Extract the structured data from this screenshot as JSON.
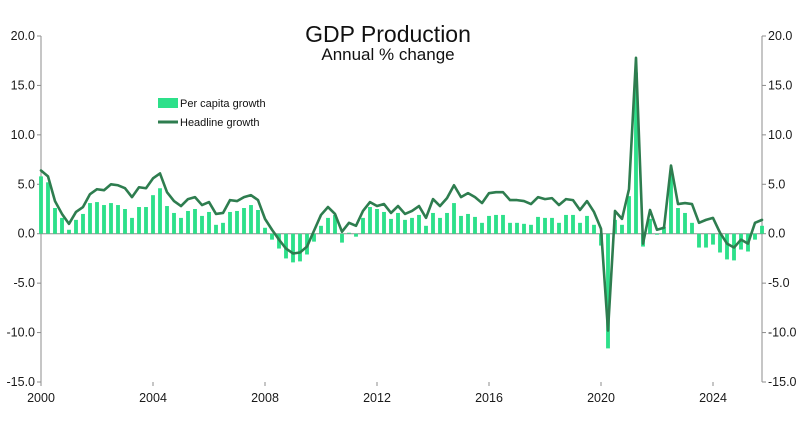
{
  "chart_data": {
    "type": "bar+line",
    "title": "GDP Production",
    "subtitle": "Annual % change",
    "xlabel": "",
    "ylabel": "",
    "ylim": [
      -15,
      20
    ],
    "yticks": [
      {
        "value": 20,
        "label": "20.0"
      },
      {
        "value": 15,
        "label": "15.0"
      },
      {
        "value": 10,
        "label": "10.0"
      },
      {
        "value": 5,
        "label": "5.0"
      },
      {
        "value": 0,
        "label": "0.0"
      },
      {
        "value": -5,
        "label": "-5.0"
      },
      {
        "value": -10,
        "label": "-10.0"
      },
      {
        "value": -15,
        "label": "-15.0"
      }
    ],
    "xlim": [
      2000.0,
      2025.75
    ],
    "xticks": [
      {
        "value": 2000,
        "label": "2000"
      },
      {
        "value": 2004,
        "label": "2004"
      },
      {
        "value": 2008,
        "label": "2008"
      },
      {
        "value": 2012,
        "label": "2012"
      },
      {
        "value": 2016,
        "label": "2016"
      },
      {
        "value": 2020,
        "label": "2020"
      },
      {
        "value": 2024,
        "label": "2024"
      }
    ],
    "grid": false,
    "legend_position": "top-left",
    "x_start": 2000.0,
    "x_step": 0.25,
    "series": [
      {
        "name": "Per capita growth",
        "type": "bar",
        "color": "#2de08a",
        "values": [
          5.8,
          5.2,
          2.6,
          1.6,
          0.4,
          1.4,
          2.0,
          3.1,
          3.2,
          2.9,
          3.1,
          2.9,
          2.5,
          1.6,
          2.7,
          2.7,
          3.9,
          4.6,
          2.8,
          2.1,
          1.6,
          2.3,
          2.5,
          1.8,
          2.2,
          0.9,
          1.1,
          2.2,
          2.3,
          2.6,
          2.9,
          2.4,
          0.6,
          -0.6,
          -1.5,
          -2.5,
          -2.9,
          -2.8,
          -2.1,
          -0.8,
          0.8,
          1.6,
          1.9,
          -0.9,
          0.1,
          -0.3,
          1.6,
          2.7,
          2.5,
          2.2,
          1.5,
          2.1,
          1.4,
          1.6,
          1.9,
          0.8,
          2.1,
          1.6,
          2.1,
          3.1,
          1.8,
          2.0,
          1.7,
          1.1,
          1.8,
          1.9,
          1.9,
          1.1,
          1.1,
          1.0,
          0.9,
          1.7,
          1.6,
          1.6,
          1.1,
          1.9,
          1.9,
          1.1,
          1.8,
          0.9,
          -1.2,
          -11.6,
          1.4,
          0.9,
          3.8,
          16.3,
          -1.3,
          1.5,
          -0.1,
          0.7,
          6.2,
          2.6,
          2.1,
          1.1,
          -1.4,
          -1.4,
          -1.1,
          -1.9,
          -2.6,
          -2.7,
          -1.6,
          -1.8,
          -0.6,
          0.8
        ],
        "label_x": "Per capita growth"
      },
      {
        "name": "Headline growth",
        "type": "line",
        "color": "#2e7d4f",
        "values": [
          6.4,
          5.8,
          3.3,
          2.0,
          1.0,
          2.2,
          2.7,
          4.0,
          4.5,
          4.4,
          5.0,
          4.9,
          4.6,
          3.7,
          4.7,
          4.6,
          5.6,
          6.1,
          4.2,
          3.3,
          2.8,
          3.5,
          3.7,
          2.9,
          3.2,
          2.0,
          2.1,
          3.4,
          3.3,
          3.7,
          3.9,
          3.4,
          1.5,
          0.4,
          -0.6,
          -1.5,
          -2.0,
          -1.9,
          -1.3,
          0.3,
          1.9,
          2.7,
          2.0,
          0.2,
          1.1,
          0.8,
          2.3,
          3.2,
          2.8,
          3.0,
          2.1,
          2.8,
          2.0,
          2.3,
          2.8,
          1.6,
          3.5,
          2.8,
          3.6,
          4.9,
          3.7,
          4.1,
          3.7,
          3.1,
          4.1,
          4.2,
          4.2,
          3.4,
          3.4,
          3.3,
          3.0,
          3.7,
          3.5,
          3.6,
          2.9,
          3.5,
          3.4,
          2.4,
          3.3,
          2.2,
          0.5,
          -9.8,
          2.3,
          1.5,
          4.5,
          17.8,
          -1.0,
          2.4,
          0.4,
          0.6,
          6.9,
          3.0,
          3.1,
          3.0,
          1.1,
          1.4,
          1.6,
          0.1,
          -1.0,
          -1.4,
          -0.6,
          -1.0,
          1.1,
          1.4
        ],
        "label_x": "Headline growth"
      }
    ]
  }
}
